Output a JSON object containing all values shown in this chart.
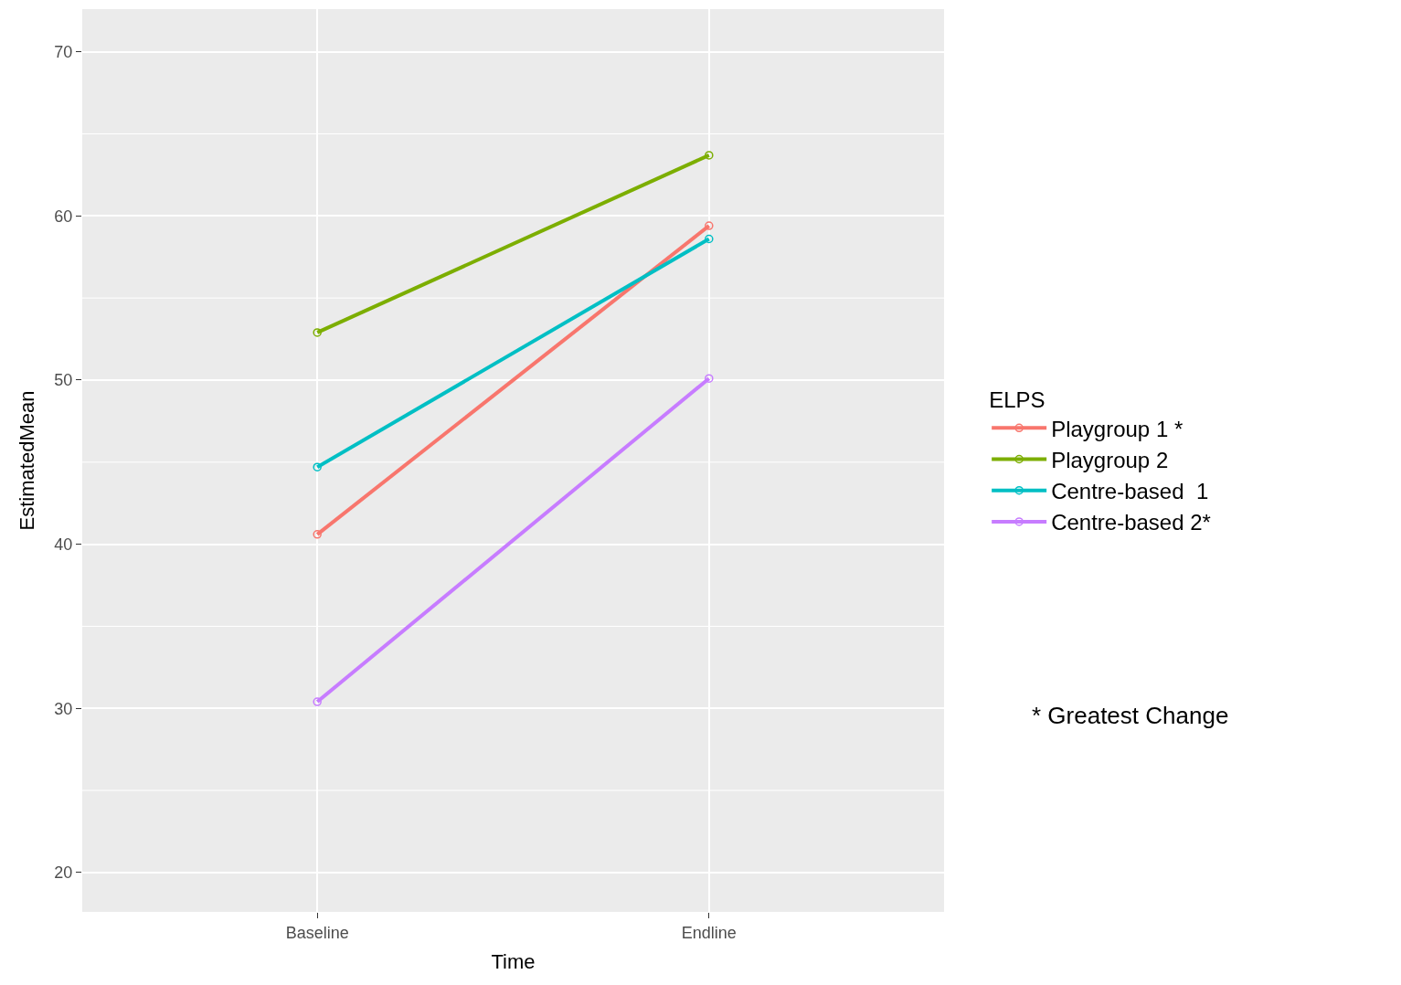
{
  "chart_data": {
    "type": "line",
    "xlabel": "Time",
    "ylabel": "EstimatedMean",
    "legend_title": "ELPS",
    "categories": [
      "Baseline",
      "Endline"
    ],
    "series": [
      {
        "name": "Playgroup 1 *",
        "color": "#f8766d",
        "values": [
          40.6,
          59.4
        ]
      },
      {
        "name": "Playgroup 2",
        "color": "#7cae00",
        "values": [
          52.9,
          63.7
        ]
      },
      {
        "name": "Centre-based  1",
        "color": "#00bfc4",
        "values": [
          44.7,
          58.6
        ]
      },
      {
        "name": "Centre-based 2*",
        "color": "#c77cff",
        "values": [
          30.4,
          50.1
        ]
      }
    ],
    "ylim": [
      17.6,
      72.6
    ],
    "yticks": [
      20,
      30,
      40,
      50,
      60,
      70
    ],
    "grid": true,
    "legend": "right",
    "marker": "circle",
    "line_style": "solid",
    "annotations": [
      "* Greatest Change"
    ]
  }
}
